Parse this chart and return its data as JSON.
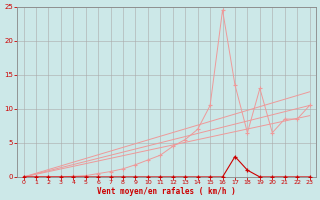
{
  "bg_color": "#cce8e8",
  "grid_color": "#aaaaaa",
  "x_min": 0,
  "x_max": 23,
  "y_min": 0,
  "y_max": 25,
  "xlabel": "Vent moyen/en rafales ( km/h )",
  "xlabel_color": "#cc0000",
  "tick_color": "#cc0000",
  "axis_color": "#888888",
  "line_pink_x": [
    0,
    1,
    2,
    3,
    4,
    5,
    6,
    7,
    8,
    9,
    10,
    11,
    12,
    13,
    14,
    15,
    16,
    17,
    18,
    19,
    20,
    21,
    22,
    23
  ],
  "line_pink_y": [
    0,
    0,
    0,
    0,
    0.1,
    0.2,
    0.5,
    0.8,
    1.2,
    1.8,
    2.5,
    3.2,
    4.5,
    5.5,
    7.0,
    10.5,
    24.5,
    13.5,
    6.5,
    13.0,
    6.5,
    8.5,
    8.5,
    10.5
  ],
  "line_pink_color": "#ee9999",
  "trend1_x": [
    0,
    23
  ],
  "trend1_y": [
    0,
    12.5
  ],
  "trend1_color": "#ee9999",
  "trend2_x": [
    0,
    23
  ],
  "trend2_y": [
    0,
    10.5
  ],
  "trend2_color": "#ee9999",
  "trend3_x": [
    0,
    23
  ],
  "trend3_y": [
    0,
    9.0
  ],
  "trend3_color": "#ee9999",
  "line_red_x": [
    0,
    1,
    2,
    3,
    4,
    5,
    6,
    7,
    8,
    9,
    10,
    11,
    12,
    13,
    14,
    15,
    16,
    17,
    18,
    19,
    20,
    21,
    22,
    23
  ],
  "line_red_y": [
    0,
    0,
    0,
    0,
    0,
    0,
    0,
    0,
    0,
    0,
    0,
    0,
    0,
    0,
    0,
    0,
    0,
    3,
    1,
    0,
    0,
    0,
    0,
    0
  ],
  "line_red_color": "#cc0000",
  "marker_size": 3.0
}
